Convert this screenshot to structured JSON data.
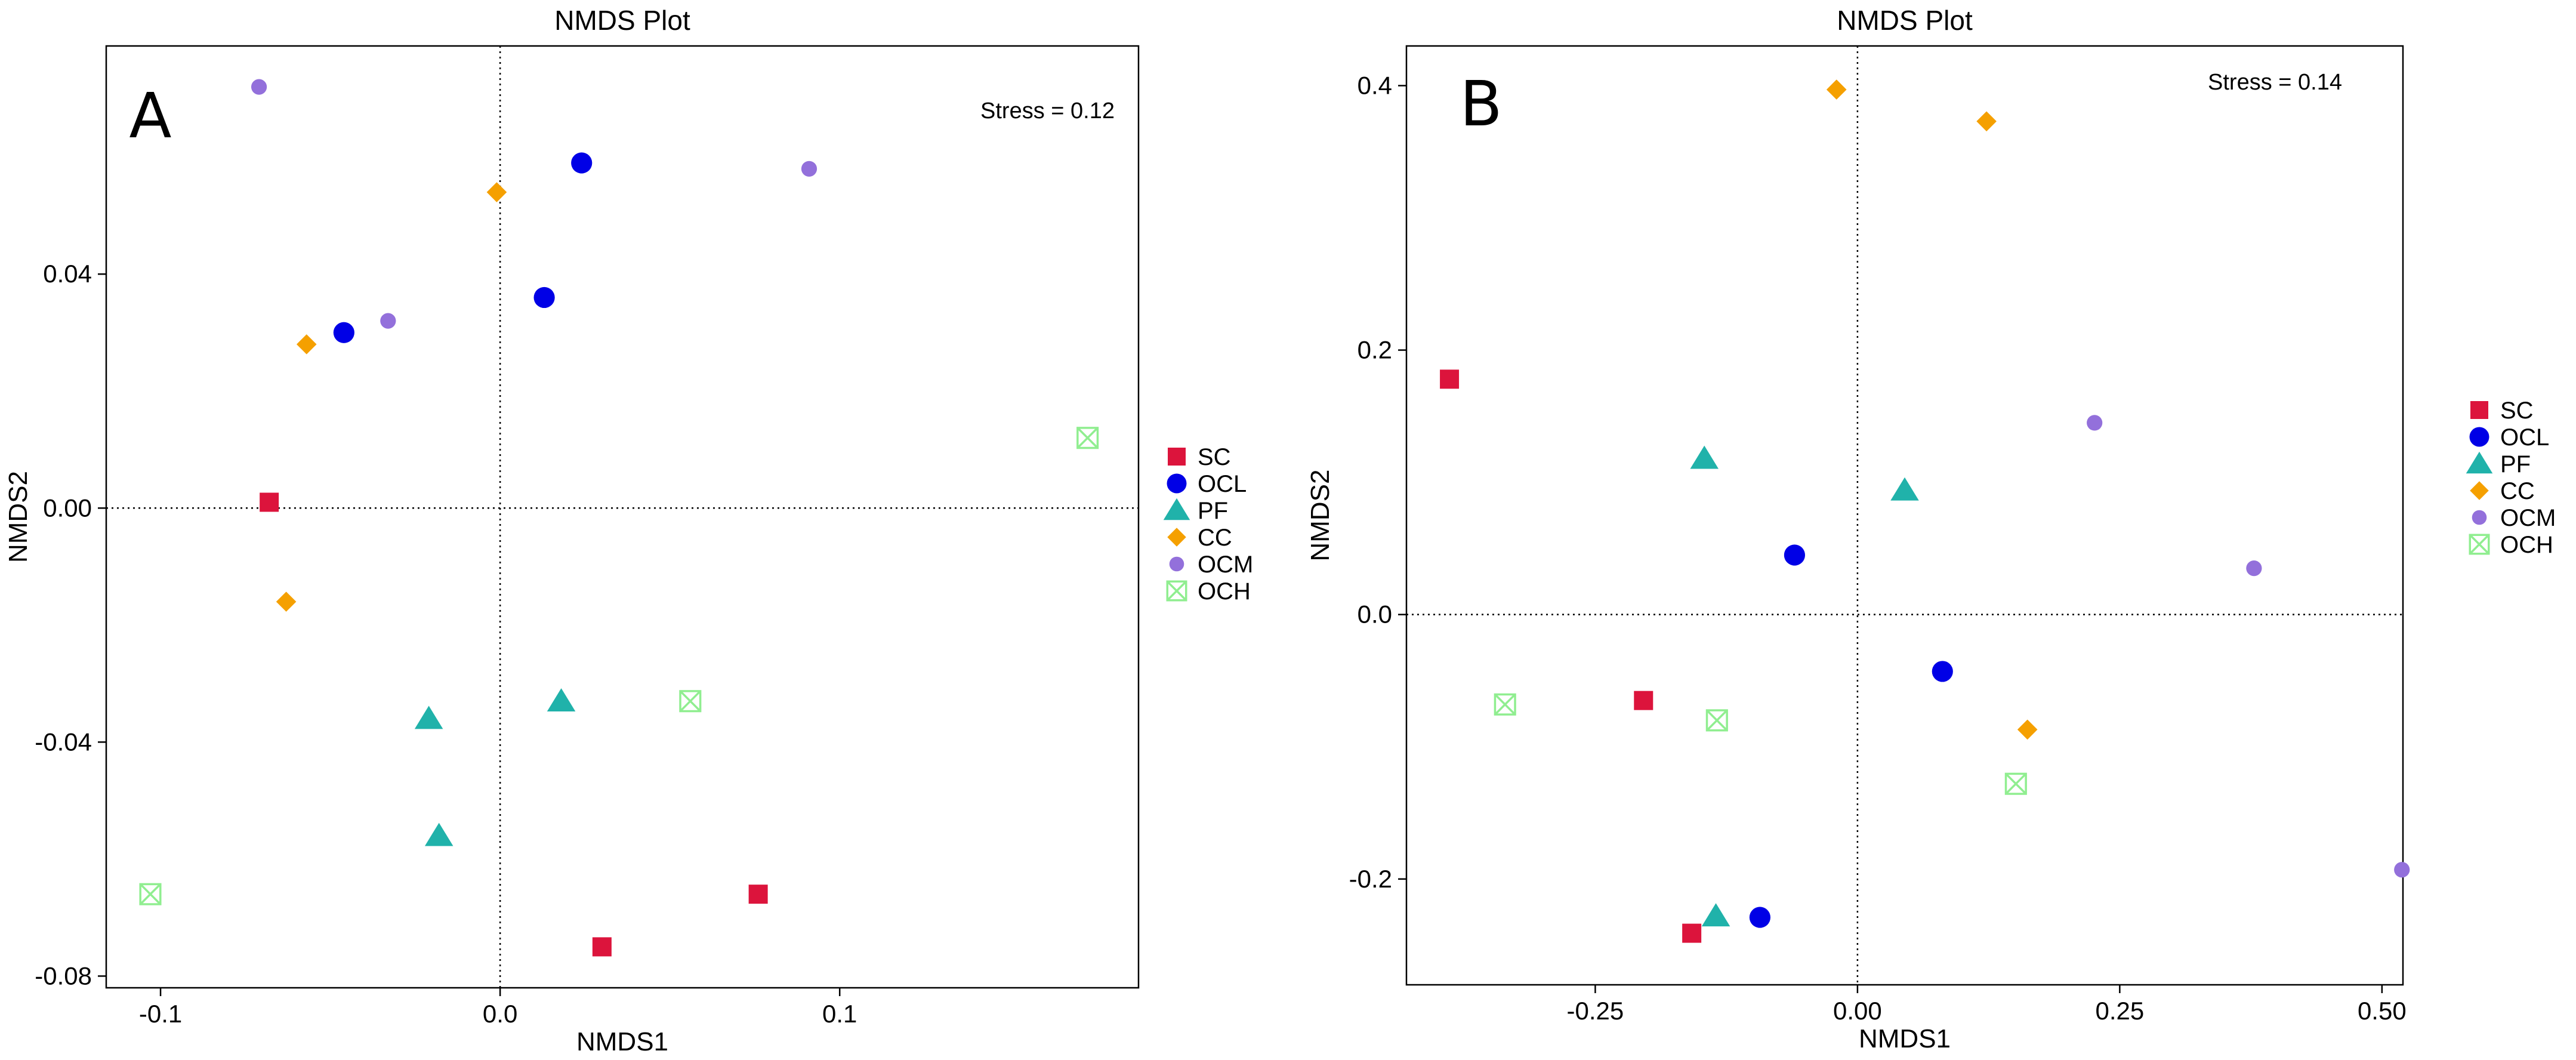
{
  "chart_data": [
    {
      "type": "scatter",
      "panel_label": "A",
      "title": "NMDS Plot",
      "xlabel": "NMDS1",
      "ylabel": "NMDS2",
      "annotation": "Stress = 0.12",
      "xlim": [
        -0.116,
        0.188
      ],
      "ylim": [
        -0.082,
        0.079
      ],
      "xticks": [
        -0.1,
        0.0,
        0.1
      ],
      "xtick_labels": [
        "-0.1",
        "0.0",
        "0.1"
      ],
      "yticks": [
        -0.08,
        -0.04,
        0.0,
        0.04
      ],
      "ytick_labels": [
        "-0.08",
        "-0.04",
        "0.00",
        "0.04"
      ],
      "reference_lines": {
        "x": 0,
        "y": 0
      },
      "legend": [
        "SC",
        "OCL",
        "PF",
        "CC",
        "OCM",
        "OCH"
      ],
      "series": [
        {
          "name": "SC",
          "color": "#dc143c",
          "marker": "square",
          "points": [
            [
              -0.068,
              0.001
            ],
            [
              0.03,
              -0.075
            ],
            [
              0.076,
              -0.066
            ]
          ]
        },
        {
          "name": "OCL",
          "color": "#0000e6",
          "marker": "circle",
          "points": [
            [
              0.024,
              0.059
            ],
            [
              0.013,
              0.036
            ],
            [
              -0.046,
              0.03
            ]
          ]
        },
        {
          "name": "PF",
          "color": "#20b2aa",
          "marker": "triangle",
          "points": [
            [
              -0.021,
              -0.036
            ],
            [
              0.018,
              -0.033
            ],
            [
              -0.018,
              -0.056
            ]
          ]
        },
        {
          "name": "CC",
          "color": "#f5a000",
          "marker": "diamond",
          "points": [
            [
              -0.001,
              0.054
            ],
            [
              -0.057,
              0.028
            ],
            [
              -0.063,
              -0.016
            ]
          ]
        },
        {
          "name": "OCM",
          "color": "#9370db",
          "marker": "small-circle",
          "points": [
            [
              -0.071,
              0.072
            ],
            [
              0.091,
              0.058
            ],
            [
              -0.033,
              0.032
            ]
          ]
        },
        {
          "name": "OCH",
          "color": "#90ee90",
          "marker": "boxed-x",
          "points": [
            [
              0.173,
              0.012
            ],
            [
              0.056,
              -0.033
            ],
            [
              -0.103,
              -0.066
            ]
          ]
        }
      ]
    },
    {
      "type": "scatter",
      "panel_label": "B",
      "title": "NMDS Plot",
      "xlabel": "NMDS1",
      "ylabel": "NMDS2",
      "annotation": "Stress = 0.14",
      "xlim": [
        -0.43,
        0.52
      ],
      "ylim": [
        -0.28,
        0.43
      ],
      "xticks": [
        -0.25,
        0.0,
        0.25,
        0.5
      ],
      "xtick_labels": [
        "-0.25",
        "0.00",
        "0.25",
        "0.50"
      ],
      "yticks": [
        -0.2,
        0.0,
        0.2,
        0.4
      ],
      "ytick_labels": [
        "-0.2",
        "0.0",
        "0.2",
        "0.4"
      ],
      "reference_lines": {
        "x": 0,
        "y": 0
      },
      "legend": [
        "SC",
        "OCL",
        "PF",
        "CC",
        "OCM",
        "OCH"
      ],
      "series": [
        {
          "name": "SC",
          "color": "#dc143c",
          "marker": "square",
          "points": [
            [
              -0.389,
              0.178
            ],
            [
              -0.204,
              -0.065
            ],
            [
              -0.158,
              -0.241
            ]
          ]
        },
        {
          "name": "OCL",
          "color": "#0000e6",
          "marker": "circle",
          "points": [
            [
              -0.06,
              0.045
            ],
            [
              0.081,
              -0.043
            ],
            [
              -0.093,
              -0.229
            ]
          ]
        },
        {
          "name": "PF",
          "color": "#20b2aa",
          "marker": "triangle",
          "points": [
            [
              -0.146,
              0.118
            ],
            [
              0.045,
              0.094
            ],
            [
              -0.135,
              -0.228
            ]
          ]
        },
        {
          "name": "CC",
          "color": "#f5a000",
          "marker": "diamond",
          "points": [
            [
              -0.02,
              0.397
            ],
            [
              0.123,
              0.373
            ],
            [
              0.162,
              -0.087
            ]
          ]
        },
        {
          "name": "OCM",
          "color": "#9370db",
          "marker": "small-circle",
          "points": [
            [
              0.226,
              0.145
            ],
            [
              0.378,
              0.035
            ],
            [
              0.519,
              -0.193
            ]
          ]
        },
        {
          "name": "OCH",
          "color": "#90ee90",
          "marker": "boxed-x",
          "points": [
            [
              -0.336,
              -0.068
            ],
            [
              -0.134,
              -0.08
            ],
            [
              0.151,
              -0.128
            ]
          ]
        }
      ]
    }
  ]
}
